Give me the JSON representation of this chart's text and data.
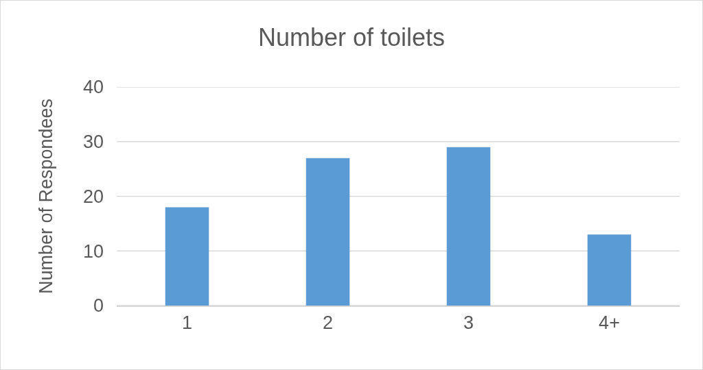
{
  "chart_data": {
    "type": "bar",
    "title": "Number of toilets",
    "ylabel": "Number of Respondees",
    "categories": [
      "1",
      "2",
      "3",
      "4+"
    ],
    "values": [
      18,
      27,
      29,
      13
    ],
    "color": "#5b9bd5",
    "ylim": [
      0,
      40
    ],
    "yticks": [
      0,
      10,
      20,
      30,
      40
    ],
    "grid": "y"
  }
}
